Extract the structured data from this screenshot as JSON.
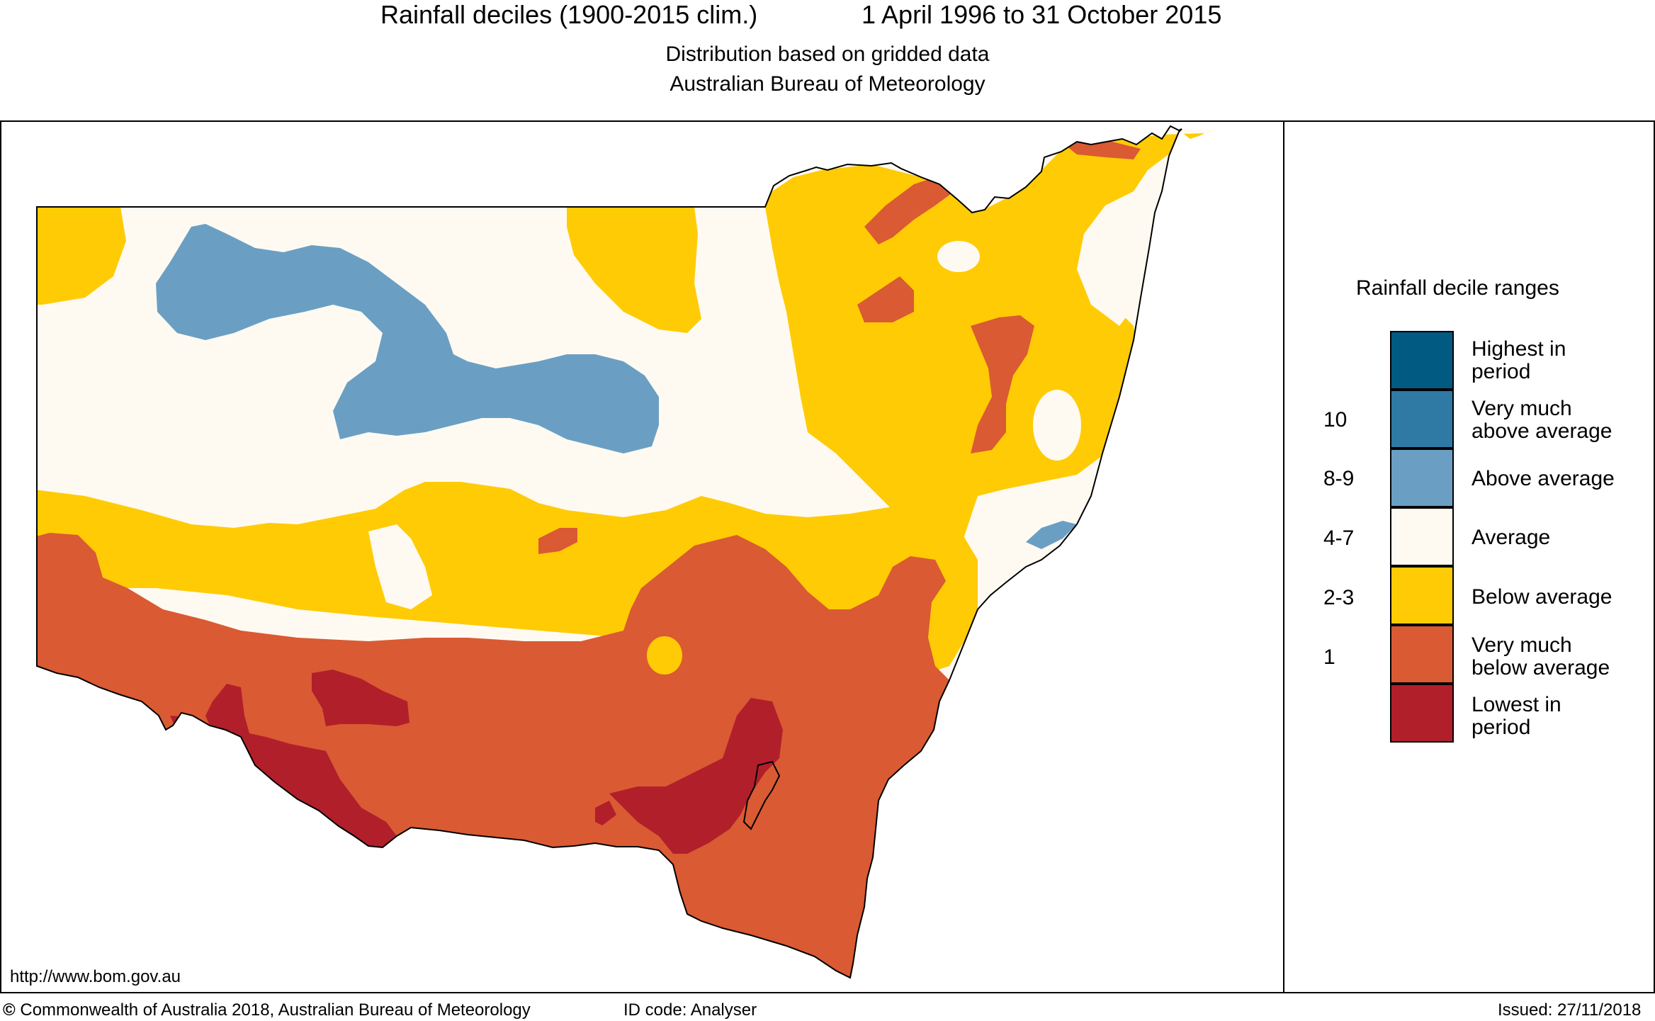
{
  "header": {
    "title": "Rainfall deciles (1900-2015 clim.)",
    "period": "1 April 1996 to 31 October 2015",
    "subtitle_1": "Distribution based on gridded data",
    "subtitle_2": "Australian Bureau of Meteorology"
  },
  "legend": {
    "title": "Rainfall decile ranges",
    "categories": [
      {
        "label_1": "Highest in",
        "label_2": "period",
        "color": "#005a82",
        "range": ""
      },
      {
        "label_1": "Very much",
        "label_2": "above average",
        "color": "#2e7aa5",
        "range": "10"
      },
      {
        "label_1": "Above average",
        "label_2": "",
        "color": "#6a9fc3",
        "range": "8-9"
      },
      {
        "label_1": "Average",
        "label_2": "",
        "color": "#fefaf2",
        "range": "4-7"
      },
      {
        "label_1": "Below average",
        "label_2": "",
        "color": "#ffcb05",
        "range": "2-3"
      },
      {
        "label_1": "Very much",
        "label_2": "below average",
        "color": "#da5a33",
        "range": "1"
      },
      {
        "label_1": "Lowest in",
        "label_2": "period",
        "color": "#b11f2b",
        "range": ""
      }
    ]
  },
  "footer": {
    "url": "http://www.bom.gov.au",
    "copyright": "Commonwealth of Australia 2018, Australian Bureau of Meteorology",
    "id_code": "ID code: Analyser",
    "issued": "Issued: 27/11/2018"
  }
}
